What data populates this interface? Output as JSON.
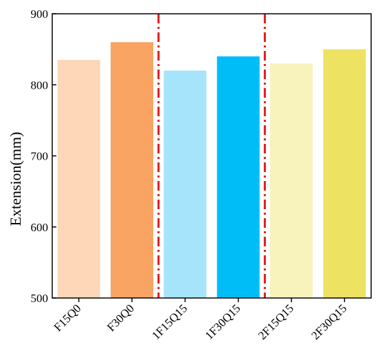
{
  "chart_data": {
    "type": "bar",
    "title": "",
    "xlabel": "",
    "ylabel": "Extension(mm)",
    "ylim": [
      500,
      900
    ],
    "yticks": [
      500,
      600,
      700,
      800,
      900
    ],
    "grid": false,
    "categories": [
      "F15Q0",
      "F30Q0",
      "1F15Q15",
      "1F30Q15",
      "2F15Q15",
      "2F30Q15"
    ],
    "values": [
      835,
      860,
      820,
      840,
      830,
      850
    ],
    "bar_colors": [
      "#FDD7B8",
      "#F9A463",
      "#A6E4FB",
      "#00BDF8",
      "#F8F3BC",
      "#EEE263"
    ],
    "group_separators": {
      "after_category_index": [
        1,
        3
      ],
      "color": "#E41A1C",
      "style": "dash-dot"
    }
  }
}
